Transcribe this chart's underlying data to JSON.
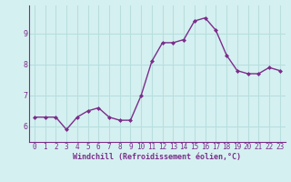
{
  "x": [
    0,
    1,
    2,
    3,
    4,
    5,
    6,
    7,
    8,
    9,
    10,
    11,
    12,
    13,
    14,
    15,
    16,
    17,
    18,
    19,
    20,
    21,
    22,
    23
  ],
  "y": [
    6.3,
    6.3,
    6.3,
    5.9,
    6.3,
    6.5,
    6.6,
    6.3,
    6.2,
    6.2,
    7.0,
    8.1,
    8.7,
    8.7,
    8.8,
    9.4,
    9.5,
    9.1,
    8.3,
    7.8,
    7.7,
    7.7,
    7.9,
    7.8
  ],
  "line_color": "#7b2d8b",
  "marker": "D",
  "marker_size": 2.0,
  "background_color": "#d5f0f0",
  "grid_color": "#b8dede",
  "ylabel_ticks": [
    6,
    7,
    8,
    9
  ],
  "xlabel": "Windchill (Refroidissement éolien,°C)",
  "ylim": [
    5.5,
    9.9
  ],
  "xlim": [
    -0.5,
    23.5
  ],
  "tick_fontsize": 5.5,
  "label_fontsize": 6.0,
  "linewidth": 1.0
}
